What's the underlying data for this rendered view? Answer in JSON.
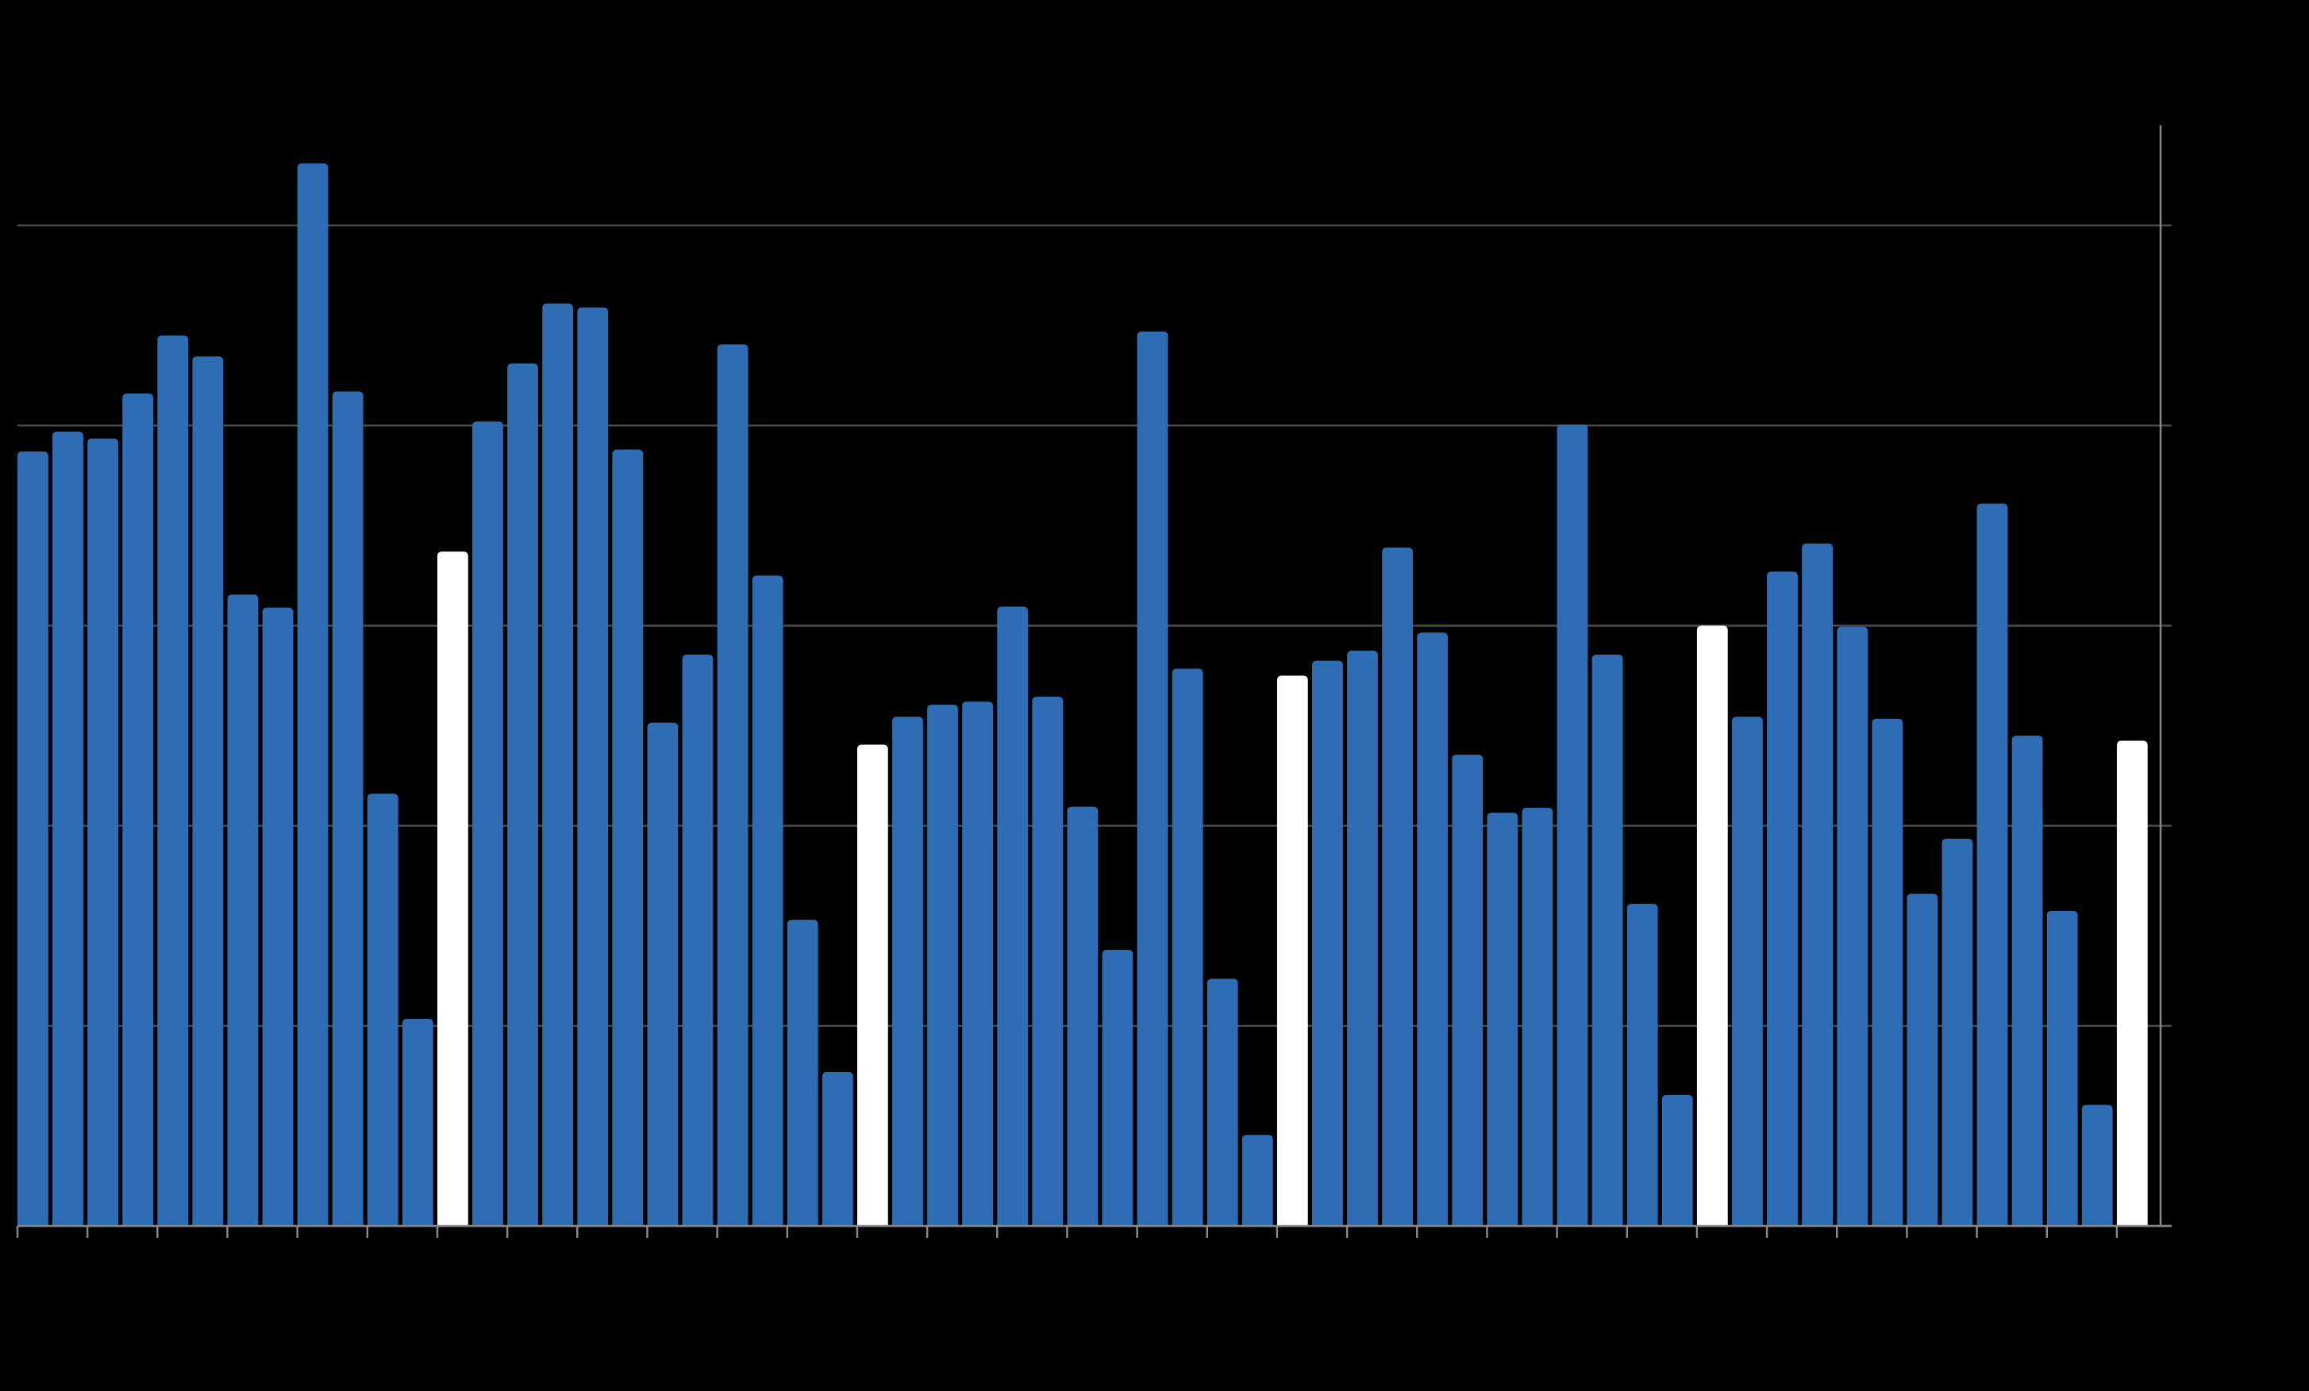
{
  "chart_data": {
    "type": "bar",
    "categories": [
      null,
      null,
      null,
      null,
      null,
      null,
      null,
      null,
      null,
      null,
      null,
      null,
      null,
      null,
      null,
      null,
      null,
      null,
      null,
      null,
      null,
      null,
      null,
      null,
      null,
      null,
      null,
      null,
      null,
      null,
      null,
      null,
      null,
      null,
      null,
      null,
      null,
      null,
      null,
      null,
      null,
      null,
      null,
      null,
      null,
      null,
      null,
      null,
      null,
      null,
      null,
      null,
      null,
      null,
      null,
      null,
      null,
      null,
      null,
      null,
      null
    ],
    "values": [
      77.4,
      79.4,
      78.7,
      83.2,
      89.0,
      86.9,
      63.1,
      61.8,
      106.2,
      83.4,
      43.2,
      20.7,
      67.4,
      80.4,
      86.2,
      92.2,
      91.8,
      77.6,
      50.3,
      57.1,
      88.1,
      65.0,
      30.6,
      15.4,
      48.1,
      50.9,
      52.1,
      52.4,
      61.9,
      52.9,
      41.9,
      27.6,
      89.4,
      55.7,
      24.7,
      9.1,
      55.0,
      56.5,
      57.5,
      67.8,
      59.3,
      47.1,
      41.3,
      41.8,
      80.1,
      57.1,
      32.2,
      13.1,
      60.0,
      50.9,
      65.4,
      68.2,
      59.9,
      50.7,
      33.2,
      38.7,
      72.2,
      49.0,
      31.5,
      12.1,
      48.5
    ],
    "colors": [
      "#2e6db4",
      "#2e6db4",
      "#2e6db4",
      "#2e6db4",
      "#2e6db4",
      "#2e6db4",
      "#2e6db4",
      "#2e6db4",
      "#2e6db4",
      "#2e6db4",
      "#2e6db4",
      "#2e6db4",
      "#ffffff",
      "#2e6db4",
      "#2e6db4",
      "#2e6db4",
      "#2e6db4",
      "#2e6db4",
      "#2e6db4",
      "#2e6db4",
      "#2e6db4",
      "#2e6db4",
      "#2e6db4",
      "#2e6db4",
      "#ffffff",
      "#2e6db4",
      "#2e6db4",
      "#2e6db4",
      "#2e6db4",
      "#2e6db4",
      "#2e6db4",
      "#2e6db4",
      "#2e6db4",
      "#2e6db4",
      "#2e6db4",
      "#2e6db4",
      "#ffffff",
      "#2e6db4",
      "#2e6db4",
      "#2e6db4",
      "#2e6db4",
      "#2e6db4",
      "#2e6db4",
      "#2e6db4",
      "#2e6db4",
      "#2e6db4",
      "#2e6db4",
      "#2e6db4",
      "#ffffff",
      "#2e6db4",
      "#2e6db4",
      "#2e6db4",
      "#2e6db4",
      "#2e6db4",
      "#2e6db4",
      "#2e6db4",
      "#2e6db4",
      "#2e6db4",
      "#2e6db4",
      "#2e6db4",
      "#ffffff"
    ],
    "ylim": [
      0,
      110
    ],
    "yticks": [
      0,
      20,
      40,
      60,
      80,
      100
    ],
    "grid": true
  }
}
